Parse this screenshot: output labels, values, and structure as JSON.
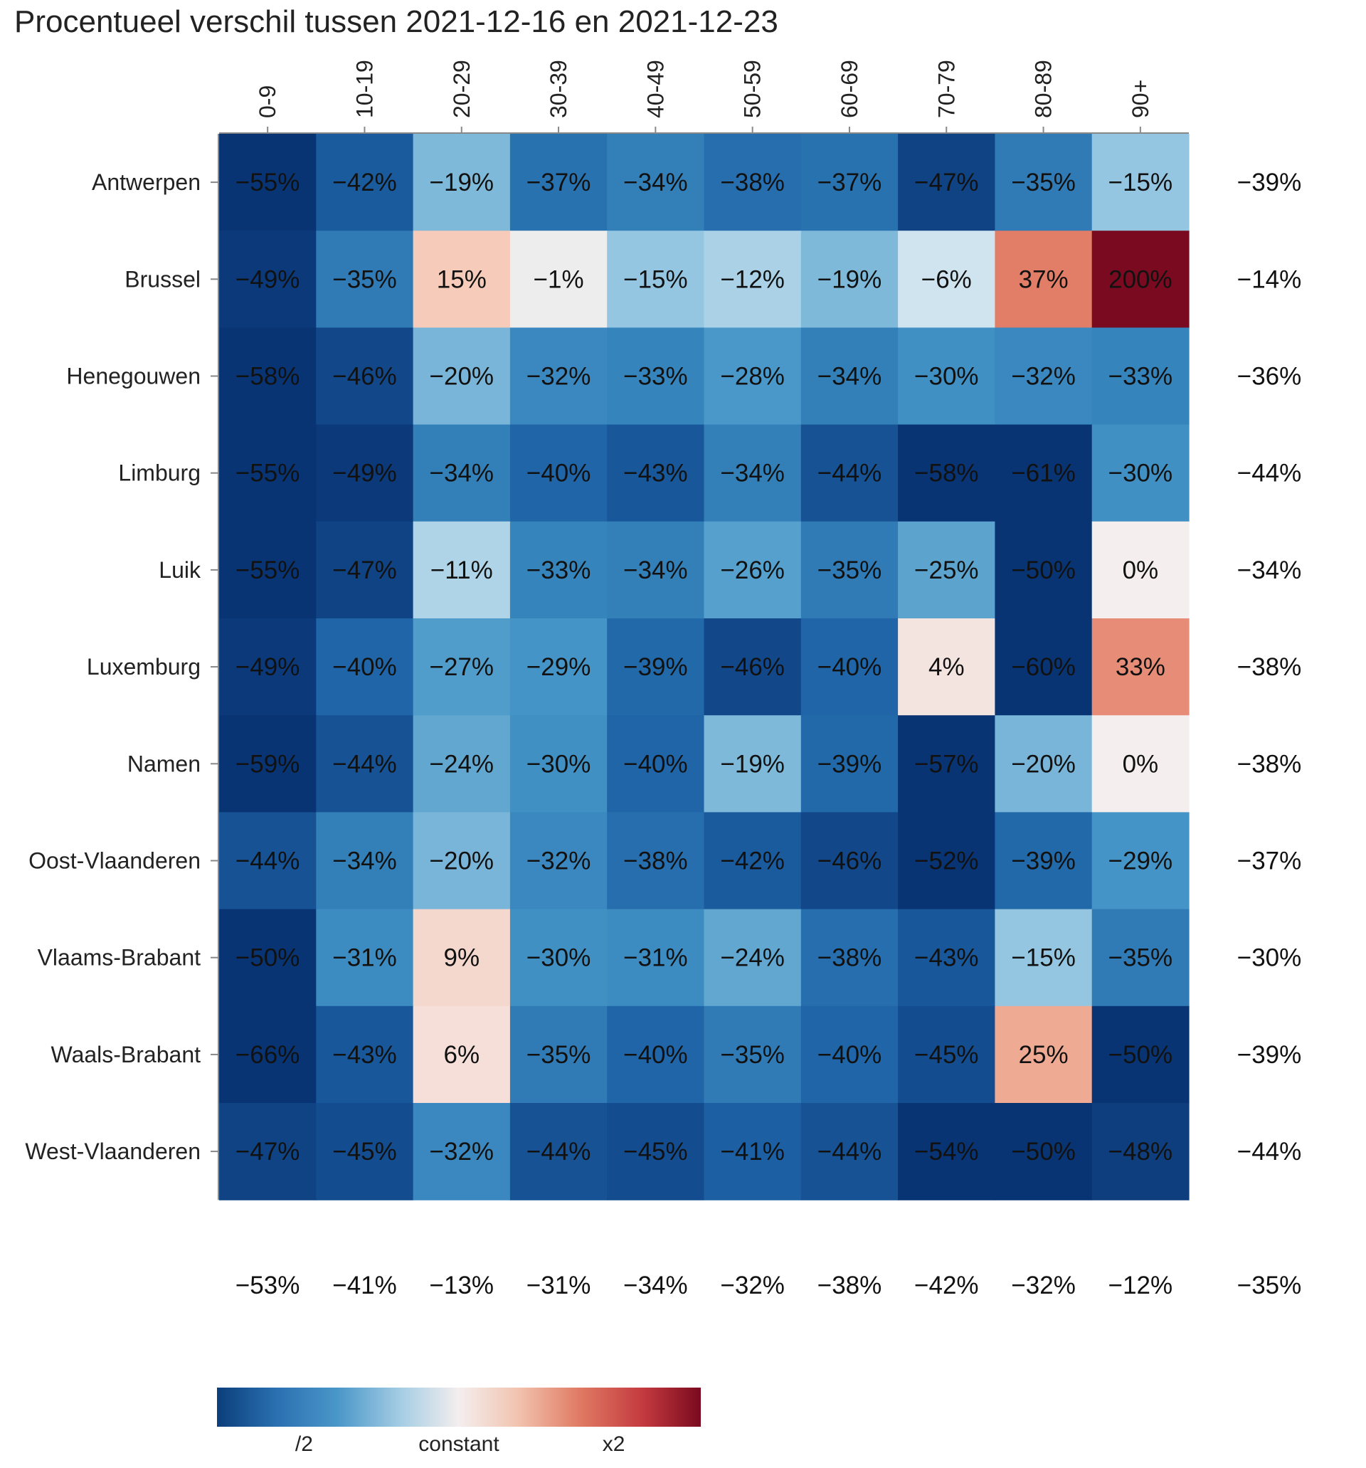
{
  "chart_data": {
    "type": "heatmap",
    "title": "Procentueel verschil tussen 2021-12-16 en 2021-12-23",
    "columns": [
      "0-9",
      "10-19",
      "20-29",
      "30-39",
      "40-49",
      "50-59",
      "60-69",
      "70-79",
      "80-89",
      "90+"
    ],
    "rows": [
      "Antwerpen",
      "Brussel",
      "Henegouwen",
      "Limburg",
      "Luik",
      "Luxemburg",
      "Namen",
      "Oost-Vlaanderen",
      "Vlaams-Brabant",
      "Waals-Brabant",
      "West-Vlaanderen"
    ],
    "values": [
      [
        -55,
        -42,
        -19,
        -37,
        -34,
        -38,
        -37,
        -47,
        -35,
        -15
      ],
      [
        -49,
        -35,
        15,
        -1,
        -15,
        -12,
        -19,
        -6,
        37,
        200
      ],
      [
        -58,
        -46,
        -20,
        -32,
        -33,
        -28,
        -34,
        -30,
        -32,
        -33
      ],
      [
        -55,
        -49,
        -34,
        -40,
        -43,
        -34,
        -44,
        -58,
        -61,
        -30
      ],
      [
        -55,
        -47,
        -11,
        -33,
        -34,
        -26,
        -35,
        -25,
        -50,
        0
      ],
      [
        -49,
        -40,
        -27,
        -29,
        -39,
        -46,
        -40,
        4,
        -60,
        33
      ],
      [
        -59,
        -44,
        -24,
        -30,
        -40,
        -19,
        -39,
        -57,
        -20,
        0
      ],
      [
        -44,
        -34,
        -20,
        -32,
        -38,
        -42,
        -46,
        -52,
        -39,
        -29
      ],
      [
        -50,
        -31,
        9,
        -30,
        -31,
        -24,
        -38,
        -43,
        -15,
        -35
      ],
      [
        -66,
        -43,
        6,
        -35,
        -40,
        -35,
        -40,
        -45,
        25,
        -50
      ],
      [
        -47,
        -45,
        -32,
        -44,
        -45,
        -41,
        -44,
        -54,
        -50,
        -48
      ]
    ],
    "row_totals": [
      -39,
      -14,
      -36,
      -44,
      -34,
      -38,
      -38,
      -37,
      -30,
      -39,
      -44
    ],
    "column_totals": [
      -53,
      -41,
      -13,
      -31,
      -34,
      -32,
      -38,
      -42,
      -32,
      -12
    ],
    "grand_total": -35,
    "value_unit": "%",
    "colorscale": "diverging blue-white-red (log ratio, /2 to x2)",
    "colors": {
      "low": "#0b3e7a",
      "mid": "#f4eeee",
      "high": "#7a0a1f"
    },
    "legend": {
      "ticks": [
        "/2",
        "constant",
        "x2"
      ],
      "placement": "bottom-left"
    },
    "grid": false
  }
}
